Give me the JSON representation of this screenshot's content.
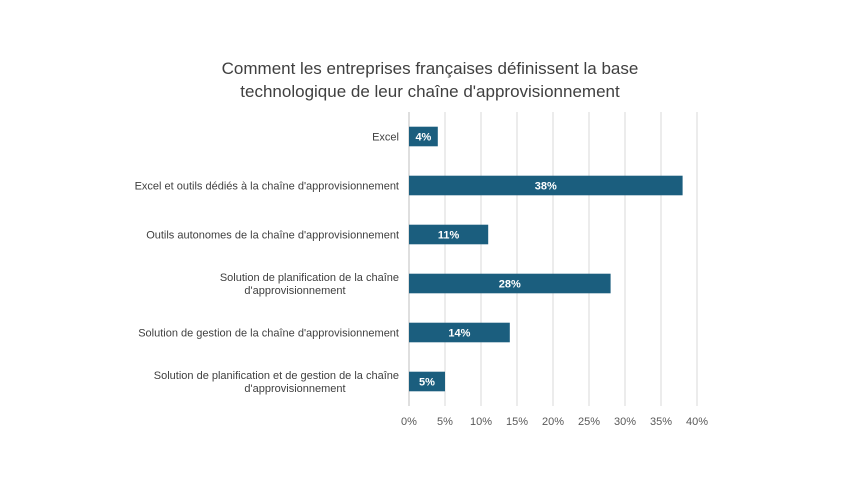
{
  "chart_data": {
    "type": "bar",
    "orientation": "horizontal",
    "title_lines": [
      "Comment les entreprises françaises définissent la base",
      "technologique de leur chaîne d'approvisionnement"
    ],
    "categories": [
      [
        "Excel"
      ],
      [
        "Excel et outils dédiés à la chaîne d'approvisionnement"
      ],
      [
        "Outils autonomes de la chaîne d'approvisionnement"
      ],
      [
        "Solution de planification de la chaîne",
        "d'approvisionnement"
      ],
      [
        "Solution de gestion de la chaîne d'approvisionnement"
      ],
      [
        "Solution de planification et de gestion de la chaîne",
        "d'approvisionnement"
      ]
    ],
    "values": [
      4,
      38,
      11,
      28,
      14,
      5
    ],
    "data_labels": [
      "4%",
      "38%",
      "11%",
      "28%",
      "14%",
      "5%"
    ],
    "xlim": [
      0,
      40
    ],
    "xticks": [
      0,
      5,
      10,
      15,
      20,
      25,
      30,
      35,
      40
    ],
    "xtick_labels": [
      "0%",
      "5%",
      "10%",
      "15%",
      "20%",
      "25%",
      "30%",
      "35%",
      "40%"
    ],
    "grid": true,
    "legend": "none",
    "bar_color": "#1b5e7e"
  }
}
